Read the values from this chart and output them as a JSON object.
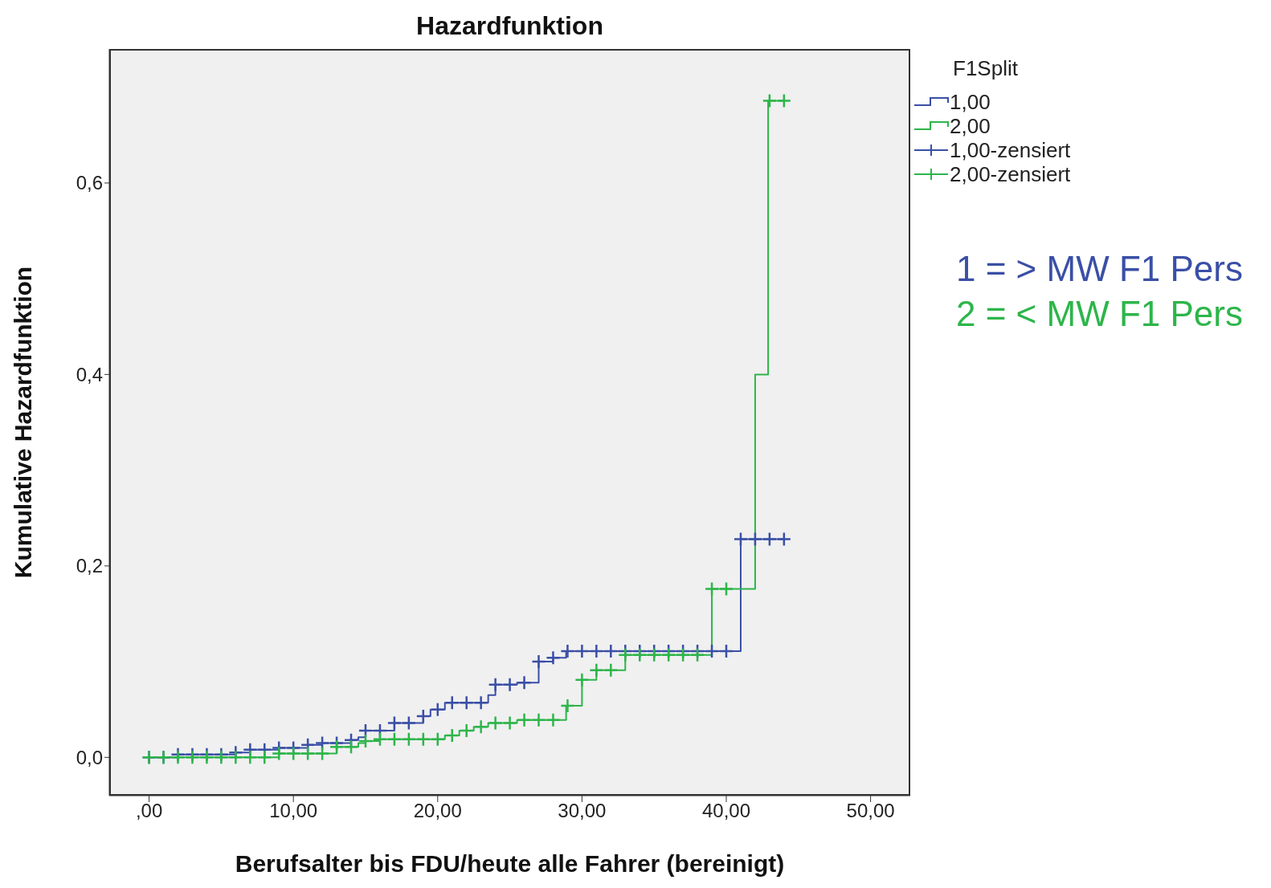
{
  "chart_data": {
    "type": "step",
    "title": "Hazardfunktion",
    "xlabel": "Berufsalter bis FDU/heute alle Fahrer (bereinigt)",
    "ylabel": "Kumulative Hazardfunktion",
    "legend_title": "F1Split",
    "legend": "top right",
    "xlim": [
      -2.76,
      52.75
    ],
    "ylim": [
      -0.04,
      0.74
    ],
    "xticks": [
      {
        "value": 0,
        "label": ",00"
      },
      {
        "value": 10,
        "label": "10,00"
      },
      {
        "value": 20,
        "label": "20,00"
      },
      {
        "value": 30,
        "label": "30,00"
      },
      {
        "value": 40,
        "label": "40,00"
      },
      {
        "value": 50,
        "label": "50,00"
      }
    ],
    "yticks": [
      {
        "value": 0,
        "label": "0,0"
      },
      {
        "value": 0.2,
        "label": "0,2"
      },
      {
        "value": 0.4,
        "label": "0,4"
      },
      {
        "value": 0.6,
        "label": "0,6"
      }
    ],
    "annotations": [
      "1 = > MW F1 Pers",
      "2 = < MW F1 Pers"
    ],
    "series": [
      {
        "name": "1,00",
        "color": "#3a4fa6",
        "x": [
          0,
          2,
          6,
          7,
          9,
          11,
          12,
          14,
          14.5,
          15,
          17,
          19,
          19.5,
          20.5,
          23.5,
          24,
          25.5,
          27,
          28,
          28.9,
          41,
          44
        ],
        "values": [
          0,
          0.003,
          0.005,
          0.008,
          0.01,
          0.013,
          0.015,
          0.018,
          0.021,
          0.028,
          0.036,
          0.043,
          0.05,
          0.057,
          0.065,
          0.076,
          0.078,
          0.1,
          0.104,
          0.111,
          0.228,
          0.228
        ]
      },
      {
        "name": "2,00",
        "color": "#2db54a",
        "x": [
          0,
          9,
          13,
          14.5,
          15,
          16,
          20.5,
          21.5,
          22.5,
          23.5,
          25.5,
          28.9,
          30,
          31,
          33,
          39,
          42,
          42.9,
          44
        ],
        "values": [
          0,
          0.004,
          0.011,
          0.015,
          0.017,
          0.019,
          0.023,
          0.028,
          0.032,
          0.036,
          0.039,
          0.054,
          0.081,
          0.091,
          0.107,
          0.176,
          0.4,
          0.686,
          0.686
        ]
      },
      {
        "name": "1,00-zensiert",
        "type": "scatter",
        "marker": "cross",
        "color": "#3a4fa6",
        "x": [
          0,
          1,
          2,
          3,
          4,
          5,
          6,
          7,
          8,
          9,
          10,
          11,
          12,
          13,
          14,
          15,
          16,
          17,
          18,
          19,
          20,
          21,
          22,
          23,
          24,
          25,
          26,
          27,
          28,
          29,
          30,
          31,
          32,
          33,
          34,
          35,
          36,
          37,
          38,
          39,
          40,
          41,
          42,
          43,
          44
        ],
        "values": [
          0,
          0,
          0.003,
          0.003,
          0.003,
          0.003,
          0.005,
          0.008,
          0.008,
          0.01,
          0.01,
          0.013,
          0.015,
          0.015,
          0.018,
          0.028,
          0.028,
          0.036,
          0.036,
          0.043,
          0.05,
          0.057,
          0.057,
          0.057,
          0.076,
          0.076,
          0.078,
          0.1,
          0.104,
          0.111,
          0.111,
          0.111,
          0.111,
          0.111,
          0.111,
          0.111,
          0.111,
          0.111,
          0.111,
          0.111,
          0.111,
          0.228,
          0.228,
          0.228,
          0.228
        ]
      },
      {
        "name": "2,00-zensiert",
        "type": "scatter",
        "marker": "cross",
        "color": "#2db54a",
        "x": [
          0,
          1,
          2,
          3,
          4,
          5,
          6,
          7,
          8,
          9,
          10,
          11,
          12,
          13,
          14,
          15,
          16,
          17,
          18,
          19,
          20,
          21,
          22,
          23,
          24,
          25,
          26,
          27,
          28,
          29,
          30,
          31,
          32,
          33,
          34,
          35,
          36,
          37,
          38,
          39,
          40,
          43,
          44
        ],
        "values": [
          0,
          0,
          0,
          0,
          0,
          0,
          0,
          0,
          0,
          0.004,
          0.004,
          0.004,
          0.004,
          0.011,
          0.011,
          0.017,
          0.019,
          0.019,
          0.019,
          0.019,
          0.019,
          0.023,
          0.028,
          0.032,
          0.036,
          0.036,
          0.039,
          0.039,
          0.039,
          0.054,
          0.081,
          0.091,
          0.091,
          0.107,
          0.107,
          0.107,
          0.107,
          0.107,
          0.107,
          0.176,
          0.176,
          0.686,
          0.686
        ]
      }
    ]
  }
}
